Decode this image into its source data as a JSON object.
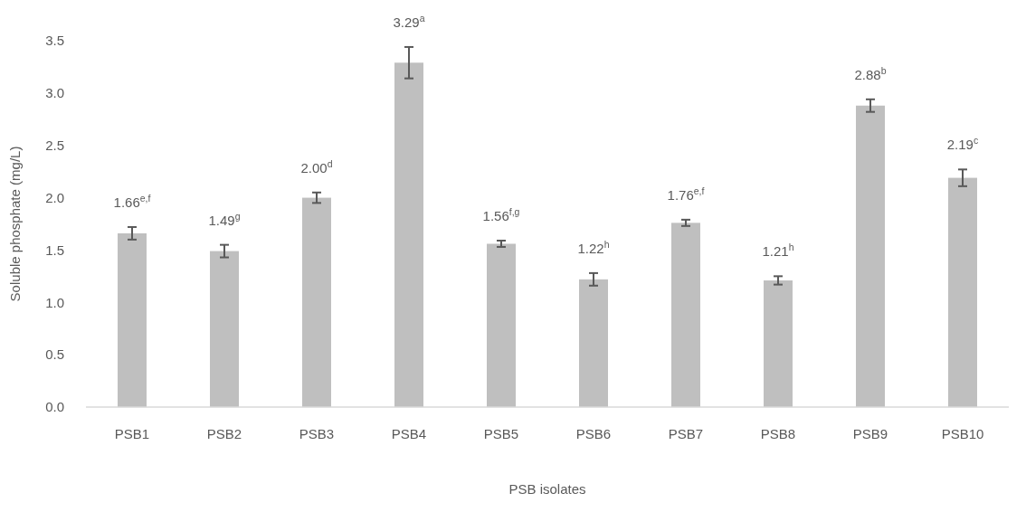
{
  "chart_data": {
    "type": "bar",
    "xlabel": "PSB isolates",
    "ylabel": "Soluble phosphate (mg/L)",
    "categories": [
      "PSB1",
      "PSB2",
      "PSB3",
      "PSB4",
      "PSB5",
      "PSB6",
      "PSB7",
      "PSB8",
      "PSB9",
      "PSB10"
    ],
    "values": [
      1.66,
      1.49,
      2.0,
      3.29,
      1.56,
      1.22,
      1.76,
      1.21,
      2.88,
      2.19
    ],
    "errors": [
      0.06,
      0.06,
      0.05,
      0.15,
      0.03,
      0.06,
      0.03,
      0.04,
      0.06,
      0.08
    ],
    "value_labels": [
      "1.66$^{e,f}$",
      "1.49$^{g}$",
      "2.00$^{d}$",
      "3.29$^{a}$",
      "1.56$^{f,g}$",
      "1.22$^{h}$",
      "1.76$^{e,f}$",
      "1.21$^{h}$",
      "2.88$^{b}$",
      "2.19$^{c}$"
    ],
    "color": "#bfbfbf",
    "ylim": [
      0,
      3.5
    ],
    "yticks": [
      {
        "value": 0,
        "label": "0.0"
      },
      {
        "value": 0.5,
        "label": "0.5"
      },
      {
        "value": 1,
        "label": "1.0"
      },
      {
        "value": 1.5,
        "label": "1.5"
      },
      {
        "value": 2,
        "label": "2.0"
      },
      {
        "value": 2.5,
        "label": "2.5"
      },
      {
        "value": 3,
        "label": "3.0"
      },
      {
        "value": 3.5,
        "label": "3.5"
      }
    ],
    "grid": false
  }
}
